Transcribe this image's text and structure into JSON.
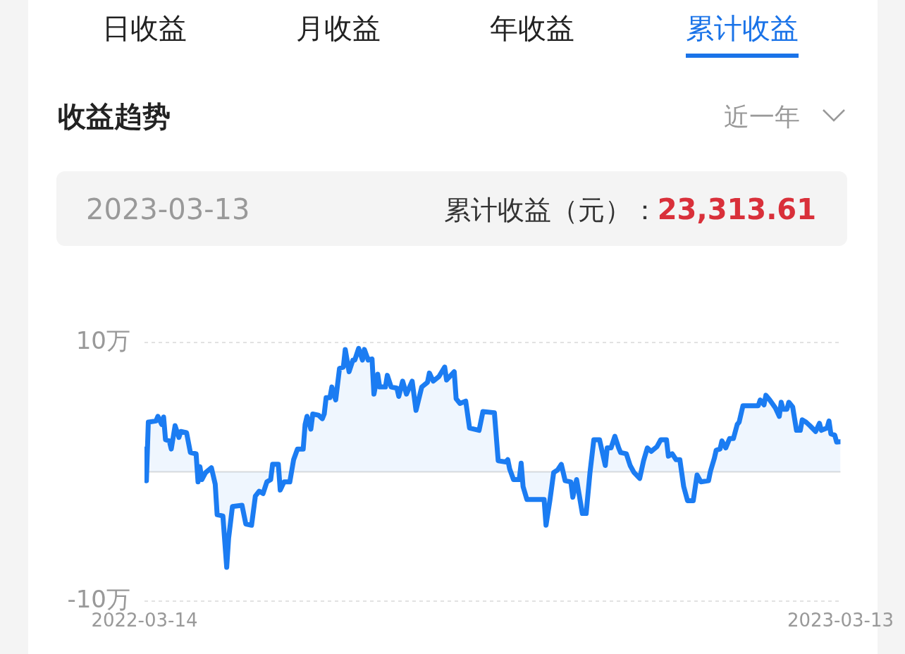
{
  "chart_data": {
    "type": "area",
    "title": "收益趋势",
    "annotations": [
      "日收益",
      "月收益",
      "年收益",
      "累计收益",
      "近一年",
      "2023-03-13",
      "累计收益（元）：",
      "23,313.61"
    ],
    "xlim": [
      "2022-03-14",
      "2023-03-13"
    ],
    "xticks": [
      "2022-03-14",
      "2023-03-13"
    ],
    "ylim": [
      -10,
      10
    ],
    "yticks": [
      {
        "value": 10,
        "label": "10万"
      },
      {
        "value": -10,
        "label": "-10万"
      }
    ],
    "grid": "y",
    "marker": "none",
    "ref_lines": [
      {
        "axis": "y",
        "value": 0,
        "color": "#dddddd"
      }
    ],
    "x": [
      "2022-03-14",
      "2022-03-15",
      "2022-03-16",
      "2022-03-20",
      "2022-03-21",
      "2022-03-23",
      "2022-03-24",
      "2022-03-25",
      "2022-03-27",
      "2022-03-28",
      "2022-03-30",
      "2022-04-01",
      "2022-04-02",
      "2022-04-05",
      "2022-04-07",
      "2022-04-10",
      "2022-04-11",
      "2022-04-12",
      "2022-04-13",
      "2022-04-15",
      "2022-04-18",
      "2022-04-20",
      "2022-04-21",
      "2022-04-24",
      "2022-04-26",
      "2022-04-27",
      "2022-04-29",
      "2022-05-04",
      "2022-05-06",
      "2022-05-09",
      "2022-05-11",
      "2022-05-13",
      "2022-05-15",
      "2022-05-17",
      "2022-05-19",
      "2022-05-20",
      "2022-05-23",
      "2022-05-24",
      "2022-05-26",
      "2022-05-29",
      "2022-05-31",
      "2022-06-02",
      "2022-06-05",
      "2022-06-06",
      "2022-06-07",
      "2022-06-09",
      "2022-06-10",
      "2022-06-13",
      "2022-06-15",
      "2022-06-16",
      "2022-06-17",
      "2022-06-19",
      "2022-06-20",
      "2022-06-22",
      "2022-06-24",
      "2022-06-26",
      "2022-06-27",
      "2022-06-29",
      "2022-07-01",
      "2022-07-02",
      "2022-07-04",
      "2022-07-06",
      "2022-07-07",
      "2022-07-09",
      "2022-07-11",
      "2022-07-12",
      "2022-07-14",
      "2022-07-15",
      "2022-07-18",
      "2022-07-19",
      "2022-07-21",
      "2022-07-24",
      "2022-07-25",
      "2022-07-27",
      "2022-07-29",
      "2022-08-01",
      "2022-08-03",
      "2022-08-06",
      "2022-08-09",
      "2022-08-10",
      "2022-08-12",
      "2022-08-15",
      "2022-08-18",
      "2022-08-19",
      "2022-08-23",
      "2022-08-24",
      "2022-08-26",
      "2022-08-29",
      "2022-08-31",
      "2022-09-05",
      "2022-09-07",
      "2022-09-13",
      "2022-09-15",
      "2022-09-19",
      "2022-09-20",
      "2022-09-21",
      "2022-09-23",
      "2022-09-26",
      "2022-09-27",
      "2022-09-28",
      "2022-09-30",
      "2022-10-09",
      "2022-10-10",
      "2022-10-12",
      "2022-10-14",
      "2022-10-16",
      "2022-10-18",
      "2022-10-20",
      "2022-10-23",
      "2022-10-24",
      "2022-10-26",
      "2022-10-29",
      "2022-10-31",
      "2022-11-02",
      "2022-11-04",
      "2022-11-07",
      "2022-11-10",
      "2022-11-11",
      "2022-11-13",
      "2022-11-15",
      "2022-11-17",
      "2022-11-18",
      "2022-11-21",
      "2022-11-23",
      "2022-11-25",
      "2022-11-28",
      "2022-11-30",
      "2022-12-02",
      "2022-12-04",
      "2022-12-07",
      "2022-12-09",
      "2022-12-12",
      "2022-12-13",
      "2022-12-15",
      "2022-12-17",
      "2022-12-19",
      "2022-12-21",
      "2022-12-23",
      "2022-12-26",
      "2022-12-28",
      "2022-12-30",
      "2023-01-03",
      "2023-01-04",
      "2023-01-06",
      "2023-01-07",
      "2023-01-09",
      "2023-01-10",
      "2023-01-12",
      "2023-01-14",
      "2023-01-16",
      "2023-01-18",
      "2023-01-19",
      "2023-01-21",
      "2023-01-29",
      "2023-01-30",
      "2023-02-01",
      "2023-02-02",
      "2023-02-04",
      "2023-02-07",
      "2023-02-09",
      "2023-02-10",
      "2023-02-11",
      "2023-02-13",
      "2023-02-14",
      "2023-02-16",
      "2023-02-18",
      "2023-02-20",
      "2023-02-21",
      "2023-02-23",
      "2023-02-25",
      "2023-02-28",
      "2023-03-02",
      "2023-03-03",
      "2023-03-06",
      "2023-03-07",
      "2023-03-08",
      "2023-03-10",
      "2023-03-11",
      "2023-03-13"
    ],
    "series": [
      {
        "color": "#1b7cf2",
        "values": [
          1.76,
          -0.69,
          3.84,
          3.93,
          4.29,
          3.66,
          4.24,
          2.48,
          2.39,
          1.76,
          3.57,
          2.66,
          3.12,
          3.03,
          1.49,
          1.39,
          -0.78,
          0.4,
          -0.6,
          -0.05,
          0.31,
          -0.96,
          -3.32,
          -3.41,
          -7.39,
          -5.13,
          -2.68,
          -2.59,
          -4.04,
          -4.13,
          -1.87,
          -1.5,
          -1.68,
          -0.78,
          -0.6,
          0.58,
          0.58,
          -1.41,
          -0.78,
          -0.78,
          0.94,
          1.76,
          1.76,
          3.66,
          4.29,
          3.3,
          4.47,
          4.38,
          4.11,
          4.47,
          5.74,
          5.74,
          6.56,
          5.56,
          8,
          8.1,
          9.46,
          7.74,
          8.64,
          8.64,
          9.55,
          8.64,
          9.46,
          8.64,
          8.73,
          6.01,
          7.55,
          6.56,
          6.56,
          7.46,
          6.56,
          6.47,
          5.83,
          7.01,
          6.01,
          7.01,
          4.75,
          6.56,
          6.92,
          7.64,
          7.01,
          7.37,
          8.1,
          7.1,
          7.74,
          5.65,
          5.29,
          5.47,
          3.39,
          3.21,
          4.66,
          4.57,
          0.85,
          0.76,
          0.94,
          0.22,
          -0.6,
          -0.6,
          0.67,
          -1.14,
          -2.14,
          -2.14,
          -4.13,
          -2.23,
          -0.05,
          0.13,
          0.58,
          -0.69,
          -0.78,
          -1.96,
          -0.6,
          -3.22,
          -3.22,
          -0.05,
          2.48,
          2.48,
          0.49,
          1.85,
          1.85,
          2.75,
          1.85,
          1.49,
          1.4,
          0.49,
          -0.05,
          -0.51,
          0.85,
          1.85,
          1.58,
          1.94,
          2.48,
          2.48,
          1.21,
          1.4,
          0.94,
          0.94,
          -1.14,
          -2.23,
          -2.23,
          -0.24,
          -0.78,
          -0.69,
          0.04,
          1.03,
          1.67,
          1.76,
          2.39,
          1.85,
          2.57,
          2.57,
          3.66,
          3.84,
          5.11,
          5.11,
          5.56,
          5.18,
          5.92,
          5.56,
          4.93,
          4.29,
          5.38,
          4.84,
          4.84,
          5.38,
          5.02,
          3.21,
          3.21,
          4.02,
          3.84,
          3.57,
          3.12,
          3.75,
          3.21,
          3.39,
          3.93,
          2.93,
          2.84,
          2.3,
          2.33
        ]
      }
    ]
  }
}
